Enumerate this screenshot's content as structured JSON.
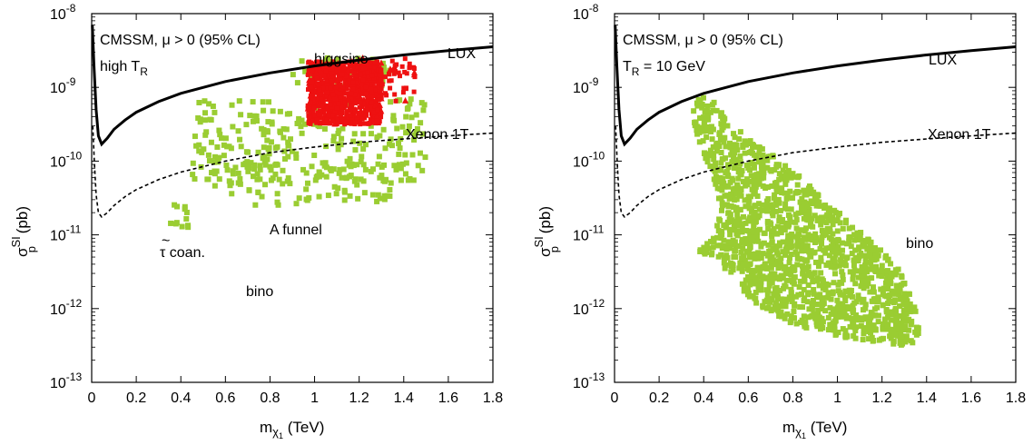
{
  "colors": {
    "bino_points": "#9acd32",
    "higgsino_points": "#ee1111",
    "lux_curve": "#000000",
    "xenon_curve": "#000000"
  },
  "chart_data": [
    {
      "type": "scatter",
      "panel": "left",
      "ylog": true,
      "xlim": [
        0,
        1.8
      ],
      "ylim": [
        1e-13,
        1e-08
      ],
      "x_ticks": [
        "0",
        "0.2",
        "0.4",
        "0.6",
        "0.8",
        "1",
        "1.2",
        "1.4",
        "1.6",
        "1.8"
      ],
      "y_ticks": [
        {
          "base": "10",
          "exp": "-13"
        },
        {
          "base": "10",
          "exp": "-12"
        },
        {
          "base": "10",
          "exp": "-11"
        },
        {
          "base": "10",
          "exp": "-10"
        },
        {
          "base": "10",
          "exp": "-9"
        },
        {
          "base": "10",
          "exp": "-8"
        }
      ],
      "xlabel": {
        "main": "m",
        "sub": "χ",
        "subsub": "1",
        "unit": " (TeV)"
      },
      "ylabel": {
        "main": "σ",
        "sup": "SI",
        "sub": "p",
        "unit": " (pb)"
      },
      "annotations": {
        "title": "CMSSM, μ > 0 (95% CL)",
        "line2_main": "high T",
        "line2_sub": "R",
        "lux": "LUX",
        "xenon": "Xenon 1T",
        "higgsino": "higgsino",
        "afunnel": "A funnel",
        "bino": "bino",
        "stau_tilde": "~",
        "stau_rest": "τ coan."
      },
      "series": [
        {
          "name": "LUX",
          "style": "solid",
          "points": [
            [
              0.003,
              7e-09
            ],
            [
              0.01,
              2e-09
            ],
            [
              0.02,
              5e-10
            ],
            [
              0.03,
              2.2e-10
            ],
            [
              0.045,
              1.7e-10
            ],
            [
              0.07,
              2.05e-10
            ],
            [
              0.1,
              2.7e-10
            ],
            [
              0.15,
              3.6e-10
            ],
            [
              0.2,
              4.6e-10
            ],
            [
              0.3,
              6.4e-10
            ],
            [
              0.4,
              8.3e-10
            ],
            [
              0.6,
              1.2e-09
            ],
            [
              0.8,
              1.57e-09
            ],
            [
              1.0,
              1.95e-09
            ],
            [
              1.2,
              2.35e-09
            ],
            [
              1.4,
              2.75e-09
            ],
            [
              1.6,
              3.15e-09
            ],
            [
              1.8,
              3.55e-09
            ]
          ]
        },
        {
          "name": "Xenon 1T",
          "style": "dashed",
          "points": [
            [
              0.005,
              3e-10
            ],
            [
              0.012,
              1e-10
            ],
            [
              0.02,
              3.5e-11
            ],
            [
              0.03,
              2e-11
            ],
            [
              0.045,
              1.75e-11
            ],
            [
              0.07,
              2e-11
            ],
            [
              0.1,
              2.5e-11
            ],
            [
              0.15,
              3.3e-11
            ],
            [
              0.2,
              4.1e-11
            ],
            [
              0.3,
              5.6e-11
            ],
            [
              0.4,
              7.1e-11
            ],
            [
              0.6,
              1e-10
            ],
            [
              0.8,
              1.3e-10
            ],
            [
              1.0,
              1.55e-10
            ],
            [
              1.2,
              1.8e-10
            ],
            [
              1.4,
              2e-10
            ],
            [
              1.6,
              2.2e-10
            ],
            [
              1.8,
              2.4e-10
            ]
          ]
        },
        {
          "name": "bino",
          "regions": [
            {
              "x": [
                0.45,
                1.5
              ],
              "logy": [
                -10.3,
                -9.15
              ],
              "n": 260
            },
            {
              "x": [
                0.55,
                1.35
              ],
              "logy": [
                -10.6,
                -10.0
              ],
              "n": 90
            },
            {
              "x": [
                0.35,
                0.45
              ],
              "logy": [
                -10.9,
                -10.55
              ],
              "n": 12
            },
            {
              "x": [
                0.9,
                1.35
              ],
              "logy": [
                -9.0,
                -8.6
              ],
              "n": 50
            }
          ]
        },
        {
          "name": "higgsino",
          "regions": [
            {
              "x": [
                0.97,
                1.3
              ],
              "logy": [
                -9.5,
                -8.65
              ],
              "n": 900
            },
            {
              "x": [
                1.2,
                1.45
              ],
              "logy": [
                -9.2,
                -8.6
              ],
              "n": 60
            }
          ]
        }
      ]
    },
    {
      "type": "scatter",
      "panel": "right",
      "ylog": true,
      "xlim": [
        0,
        1.8
      ],
      "ylim": [
        1e-13,
        1e-08
      ],
      "x_ticks": [
        "0",
        "0.2",
        "0.4",
        "0.6",
        "0.8",
        "1",
        "1.2",
        "1.4",
        "1.6",
        "1.8"
      ],
      "y_ticks": [
        {
          "base": "10",
          "exp": "-13"
        },
        {
          "base": "10",
          "exp": "-12"
        },
        {
          "base": "10",
          "exp": "-11"
        },
        {
          "base": "10",
          "exp": "-10"
        },
        {
          "base": "10",
          "exp": "-9"
        },
        {
          "base": "10",
          "exp": "-8"
        }
      ],
      "xlabel": {
        "main": "m",
        "sub": "χ",
        "subsub": "1",
        "unit": " (TeV)"
      },
      "ylabel": {
        "main": "σ",
        "sup": "SI",
        "sub": "p",
        "unit": " (pb)"
      },
      "annotations": {
        "title": "CMSSM, μ > 0  (95% CL)",
        "line2_main": "T",
        "line2_sub": "R",
        "line2_rest": " = 10 GeV",
        "lux": "LUX",
        "xenon": "Xenon 1T",
        "bino": "bino"
      },
      "series": [
        {
          "name": "LUX",
          "style": "solid",
          "points": [
            [
              0.003,
              7e-09
            ],
            [
              0.01,
              2e-09
            ],
            [
              0.02,
              5e-10
            ],
            [
              0.03,
              2.2e-10
            ],
            [
              0.045,
              1.7e-10
            ],
            [
              0.07,
              2.05e-10
            ],
            [
              0.1,
              2.7e-10
            ],
            [
              0.15,
              3.6e-10
            ],
            [
              0.2,
              4.6e-10
            ],
            [
              0.3,
              6.4e-10
            ],
            [
              0.4,
              8.3e-10
            ],
            [
              0.6,
              1.2e-09
            ],
            [
              0.8,
              1.57e-09
            ],
            [
              1.0,
              1.95e-09
            ],
            [
              1.2,
              2.35e-09
            ],
            [
              1.4,
              2.75e-09
            ],
            [
              1.6,
              3.15e-09
            ],
            [
              1.8,
              3.55e-09
            ]
          ]
        },
        {
          "name": "Xenon 1T",
          "style": "dashed",
          "points": [
            [
              0.005,
              3e-10
            ],
            [
              0.012,
              1e-10
            ],
            [
              0.02,
              3.5e-11
            ],
            [
              0.03,
              2e-11
            ],
            [
              0.045,
              1.75e-11
            ],
            [
              0.07,
              2e-11
            ],
            [
              0.1,
              2.5e-11
            ],
            [
              0.15,
              3.3e-11
            ],
            [
              0.2,
              4.1e-11
            ],
            [
              0.3,
              5.6e-11
            ],
            [
              0.4,
              7.1e-11
            ],
            [
              0.6,
              1e-10
            ],
            [
              0.8,
              1.3e-10
            ],
            [
              1.0,
              1.55e-10
            ],
            [
              1.2,
              1.8e-10
            ],
            [
              1.4,
              2e-10
            ],
            [
              1.6,
              2.2e-10
            ],
            [
              1.8,
              2.4e-10
            ]
          ]
        },
        {
          "name": "bino",
          "polygon": [
            [
              0.35,
              -9.18
            ],
            [
              0.42,
              -9.1
            ],
            [
              0.5,
              -9.4
            ],
            [
              0.62,
              -9.75
            ],
            [
              0.78,
              -10.05
            ],
            [
              0.95,
              -10.55
            ],
            [
              1.1,
              -10.95
            ],
            [
              1.25,
              -11.35
            ],
            [
              1.33,
              -11.75
            ],
            [
              1.37,
              -12.15
            ],
            [
              1.36,
              -12.45
            ],
            [
              1.3,
              -12.5
            ],
            [
              1.15,
              -12.45
            ],
            [
              0.93,
              -12.35
            ],
            [
              0.75,
              -12.15
            ],
            [
              0.62,
              -11.9
            ],
            [
              0.52,
              -11.55
            ],
            [
              0.45,
              -11.35
            ],
            [
              0.4,
              -11.25
            ],
            [
              0.36,
              -11.25
            ],
            [
              0.43,
              -11.05
            ],
            [
              0.48,
              -10.65
            ],
            [
              0.45,
              -10.3
            ],
            [
              0.4,
              -9.9
            ],
            [
              0.36,
              -9.55
            ]
          ],
          "n": 1500
        }
      ]
    }
  ]
}
